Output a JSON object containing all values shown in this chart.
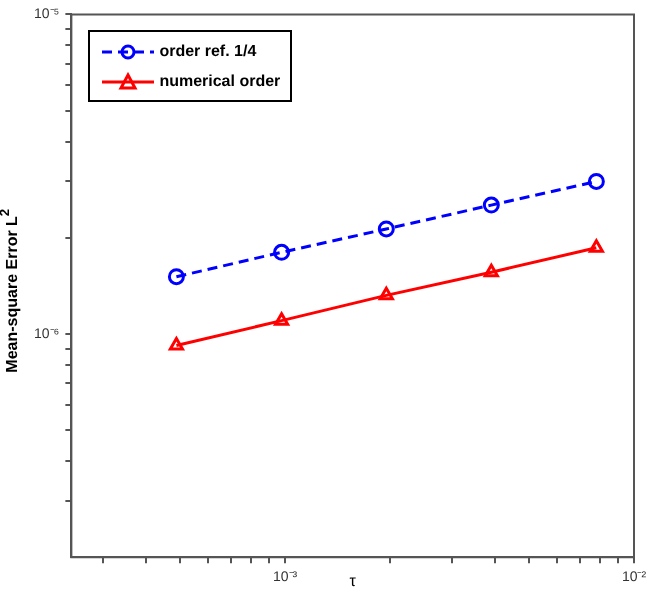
{
  "chart_data": {
    "type": "line",
    "xlabel": "τ",
    "ylabel": "Mean-square Error L$^{2}$",
    "log": "xy",
    "x": [
      0.000488,
      0.000977,
      0.00195,
      0.0039,
      0.0078
    ],
    "series": [
      {
        "name": "order ref. 1/4",
        "color": "#0000ff",
        "values": [
          1.51e-06,
          1.8e-06,
          2.13e-06,
          2.53e-06,
          3e-06
        ],
        "marker": "circle",
        "line_style": "dashed"
      },
      {
        "name": "numerical order",
        "color": "#ff0000",
        "values": [
          9.2e-07,
          1.1e-06,
          1.32e-06,
          1.56e-06,
          1.86e-06
        ],
        "marker": "triangle",
        "line_style": "solid"
      }
    ],
    "xlim": [
      0.000244,
      0.01
    ],
    "ylim": [
      2e-07,
      1e-05
    ],
    "xticks": [
      {
        "value": 0.0003,
        "label": null
      },
      {
        "value": 0.0004,
        "label": null
      },
      {
        "value": 0.0005,
        "label": null
      },
      {
        "value": 0.0006,
        "label": null
      },
      {
        "value": 0.0007,
        "label": null
      },
      {
        "value": 0.0008,
        "label": null
      },
      {
        "value": 0.0009,
        "label": null
      },
      {
        "value": 0.001,
        "label": "10⁻³"
      },
      {
        "value": 0.002,
        "label": null
      },
      {
        "value": 0.003,
        "label": null
      },
      {
        "value": 0.004,
        "label": null
      },
      {
        "value": 0.005,
        "label": null
      },
      {
        "value": 0.006,
        "label": null
      },
      {
        "value": 0.007,
        "label": null
      },
      {
        "value": 0.008,
        "label": null
      },
      {
        "value": 0.009,
        "label": null
      },
      {
        "value": 0.01,
        "label": "10⁻²"
      }
    ],
    "yticks": [
      {
        "value": 3e-07,
        "label": null
      },
      {
        "value": 4e-07,
        "label": null
      },
      {
        "value": 5e-07,
        "label": null
      },
      {
        "value": 6e-07,
        "label": null
      },
      {
        "value": 7e-07,
        "label": null
      },
      {
        "value": 8e-07,
        "label": null
      },
      {
        "value": 9e-07,
        "label": null
      },
      {
        "value": 1e-06,
        "label": "10⁻⁶"
      },
      {
        "value": 2e-06,
        "label": null
      },
      {
        "value": 3e-06,
        "label": null
      },
      {
        "value": 4e-06,
        "label": null
      },
      {
        "value": 5e-06,
        "label": null
      },
      {
        "value": 6e-06,
        "label": null
      },
      {
        "value": 7e-06,
        "label": null
      },
      {
        "value": 8e-06,
        "label": null
      },
      {
        "value": 9e-06,
        "label": null
      },
      {
        "value": 1e-05,
        "label": "10⁻⁵"
      }
    ],
    "grid": false,
    "legend": "top left"
  }
}
